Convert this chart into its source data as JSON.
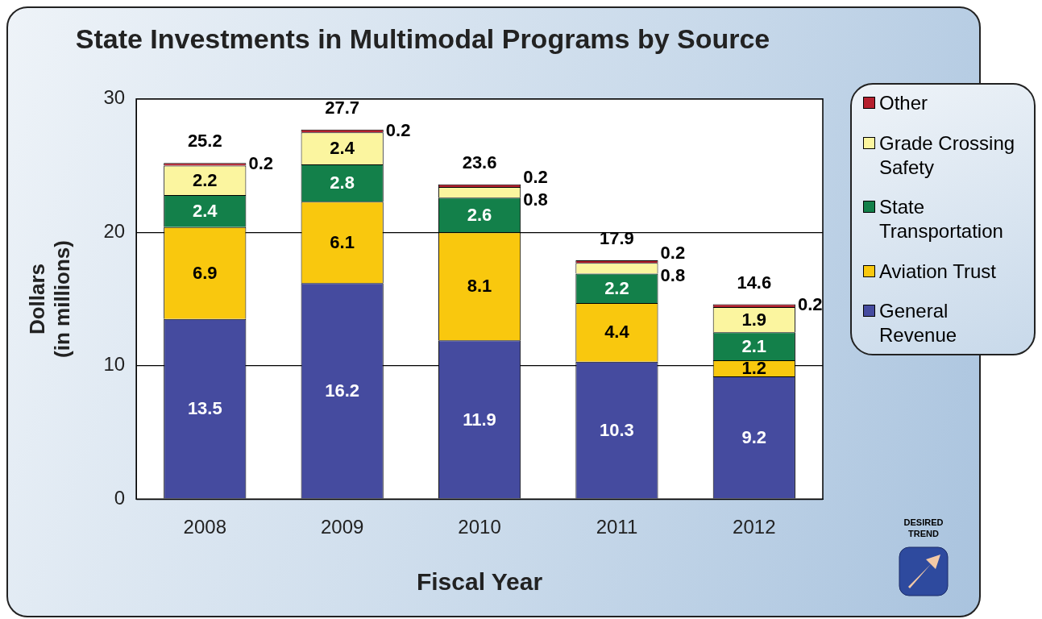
{
  "chart_data": {
    "type": "bar",
    "title": "State Investments in Multimodal Programs by Source",
    "xlabel": "Fiscal Year",
    "ylabel": "Dollars\n(in millions)",
    "categories": [
      "2008",
      "2009",
      "2010",
      "2011",
      "2012"
    ],
    "series": [
      {
        "name": "General Revenue",
        "color": "#454b9f",
        "values": [
          13.5,
          16.2,
          11.9,
          10.3,
          9.2
        ]
      },
      {
        "name": "Aviation Trust",
        "color": "#f9c80e",
        "values": [
          6.9,
          6.1,
          8.1,
          4.4,
          1.2
        ]
      },
      {
        "name": "State Transportation",
        "color": "#13804a",
        "values": [
          2.4,
          2.8,
          2.6,
          2.2,
          2.1
        ]
      },
      {
        "name": "Grade Crossing Safety",
        "color": "#fbf59f",
        "values": [
          2.2,
          2.4,
          0.8,
          0.8,
          1.9
        ]
      },
      {
        "name": "Other",
        "color": "#b5202e",
        "values": [
          0.2,
          0.2,
          0.2,
          0.2,
          0.2
        ]
      }
    ],
    "stacked": true,
    "ylim": [
      0,
      30
    ],
    "yticks": [
      0,
      10,
      20,
      30
    ],
    "grid": "y",
    "legend": "right",
    "data_labels": true,
    "totals": [
      "25.2",
      "27.7",
      "23.6",
      "17.9",
      "14.6"
    ],
    "annotations": [
      "DESIRED TREND"
    ]
  }
}
